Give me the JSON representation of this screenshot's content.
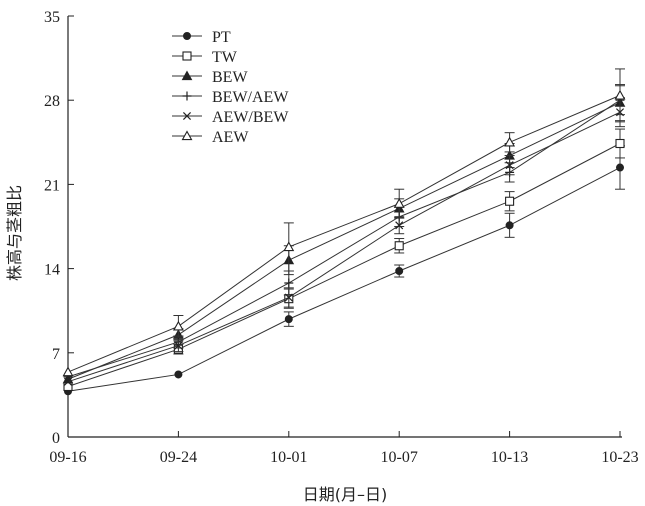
{
  "chart_data": {
    "type": "line",
    "xlabel": "日期(月–日)",
    "ylabel": "株高与茎粗比",
    "categories": [
      "09-16",
      "09-24",
      "10-01",
      "10-07",
      "10-13",
      "10-23"
    ],
    "ylim": [
      0,
      35
    ],
    "yticks": [
      0,
      7,
      14,
      21,
      28,
      35
    ],
    "grid": false,
    "legend_position": "top-left",
    "series": [
      {
        "name": "PT",
        "marker": "filled-circle",
        "values": [
          3.8,
          5.2,
          9.8,
          13.8,
          17.6,
          22.4
        ],
        "errors": [
          0,
          0,
          0.6,
          0.5,
          1.0,
          1.8
        ]
      },
      {
        "name": "TW",
        "marker": "open-square",
        "values": [
          4.2,
          7.3,
          11.5,
          15.9,
          19.6,
          24.4
        ],
        "errors": [
          0,
          0.4,
          0.8,
          0.6,
          0.8,
          1.2
        ]
      },
      {
        "name": "BEW",
        "marker": "filled-triangle",
        "values": [
          4.8,
          8.5,
          14.7,
          19.0,
          23.4,
          27.8
        ],
        "errors": [
          0,
          0.5,
          1.2,
          0.8,
          1.0,
          1.5
        ]
      },
      {
        "name": "BEW/AEW",
        "marker": "plus",
        "values": [
          5.0,
          7.9,
          12.8,
          18.3,
          22.0,
          28.0
        ],
        "errors": [
          0,
          0.5,
          1.0,
          0.8,
          0.8,
          1.2
        ]
      },
      {
        "name": "AEW/BEW",
        "marker": "cross",
        "values": [
          4.6,
          7.6,
          11.6,
          17.6,
          22.6,
          27.0
        ],
        "errors": [
          0,
          0.5,
          0.8,
          0.7,
          0.8,
          1.2
        ]
      },
      {
        "name": "AEW",
        "marker": "open-triangle",
        "values": [
          5.4,
          9.2,
          15.8,
          19.4,
          24.5,
          28.4
        ],
        "errors": [
          0,
          0.9,
          2.0,
          1.2,
          0.8,
          2.2
        ]
      }
    ]
  }
}
